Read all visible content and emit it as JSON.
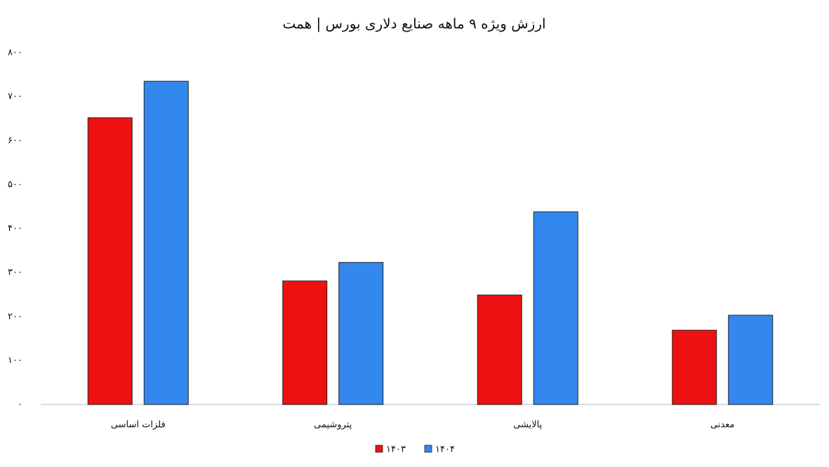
{
  "chart_data": {
    "type": "bar",
    "title": "ارزش ویژه ۹ ماهه صنایع دلاری بورس | همت",
    "categories": [
      "فلزات اساسی",
      "پتروشیمی",
      "پالایشی",
      "معدنی"
    ],
    "series": [
      {
        "name": "۱۴۰۳",
        "color": "#ee1111",
        "values": [
          652,
          281,
          249,
          169
        ]
      },
      {
        "name": "۱۴۰۴",
        "color": "#3388ee",
        "values": [
          735,
          323,
          438,
          203
        ]
      }
    ],
    "ylim": [
      0,
      800
    ],
    "yticks": [
      {
        "value": 0,
        "label": "۰"
      },
      {
        "value": 100,
        "label": "۱۰۰"
      },
      {
        "value": 200,
        "label": "۲۰۰"
      },
      {
        "value": 300,
        "label": "۳۰۰"
      },
      {
        "value": 400,
        "label": "۴۰۰"
      },
      {
        "value": 500,
        "label": "۵۰۰"
      },
      {
        "value": 600,
        "label": "۶۰۰"
      },
      {
        "value": 700,
        "label": "۷۰۰"
      },
      {
        "value": 800,
        "label": "۸۰۰"
      }
    ],
    "grid": false,
    "legend": "bottom"
  }
}
